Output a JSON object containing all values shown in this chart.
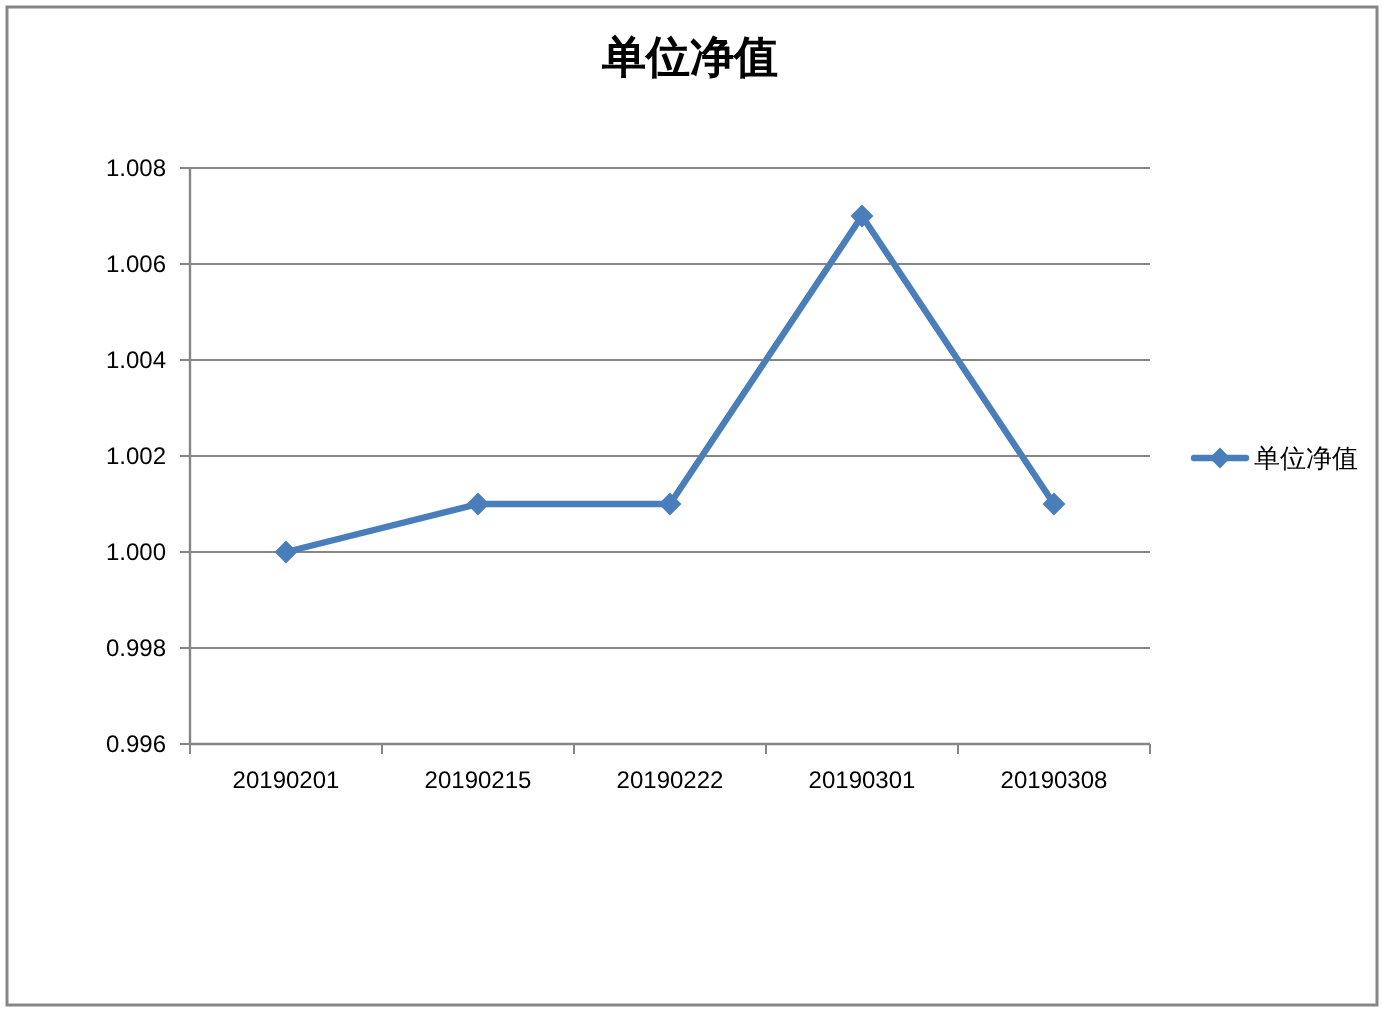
{
  "chart_data": {
    "type": "line",
    "title": "单位净值",
    "categories": [
      "20190201",
      "20190215",
      "20190222",
      "20190301",
      "20190308"
    ],
    "series": [
      {
        "name": "单位净值",
        "color": "#4a7ebb",
        "values": [
          1.0,
          1.001,
          1.001,
          1.007,
          1.001
        ]
      }
    ],
    "ylim": [
      0.996,
      1.008
    ],
    "yticks": [
      0.996,
      0.998,
      {
        "value": 1,
        "label": "1.000"
      },
      1.002,
      1.004,
      1.006,
      1.008
    ],
    "grid": "y",
    "legend": "right",
    "marker": "diamond",
    "line_style": "solid"
  }
}
